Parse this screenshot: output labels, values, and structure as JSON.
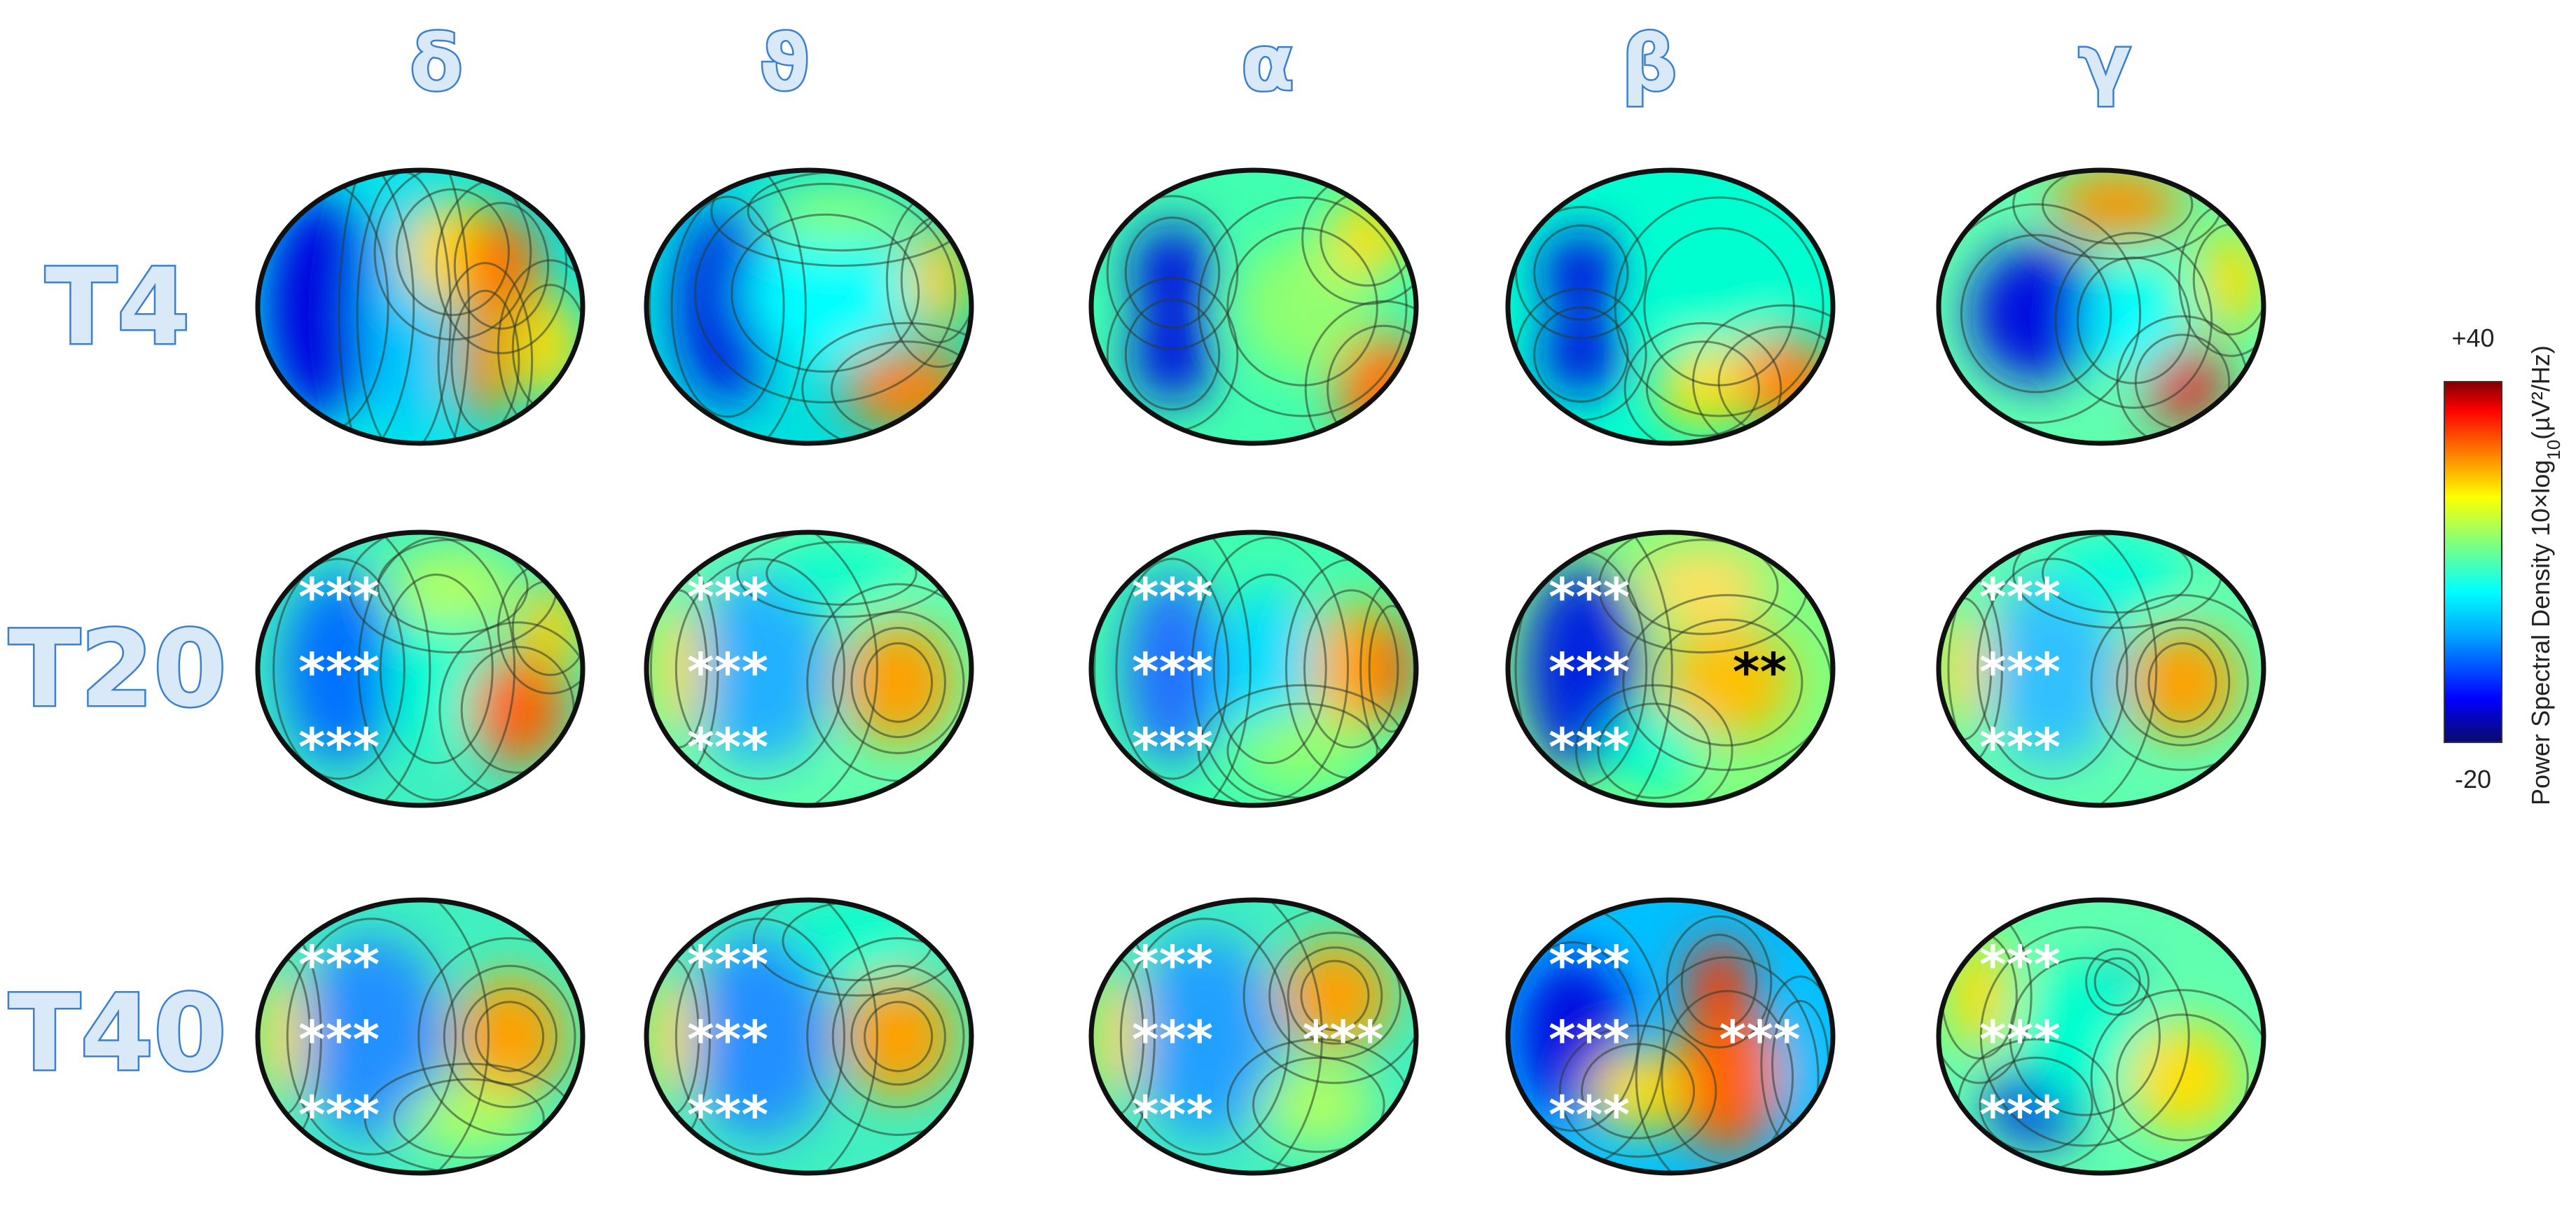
{
  "bands": [
    "δ",
    "ϑ",
    "α",
    "β",
    "γ"
  ],
  "timepoints": [
    "T4",
    "T20",
    "T40"
  ],
  "colorbar": {
    "max_label": "+40",
    "min_label": "-20",
    "axis_label_prefix": "Power Spectral Density 10×log",
    "axis_label_sub": "10",
    "axis_label_suffix": "(µV²/Hz)",
    "colors": [
      "#0a0a6a",
      "#0000ff",
      "#00a8ff",
      "#00ffff",
      "#7fff7f",
      "#ffff00",
      "#ff8000",
      "#ff0000",
      "#800000"
    ]
  },
  "significance": {
    "triple": "***",
    "double": "**",
    "markers": [
      {
        "row": 1,
        "col": 0,
        "text": "***"
      },
      {
        "row": 1,
        "col": 1,
        "text": "***"
      },
      {
        "row": 1,
        "col": 2,
        "text": "***"
      },
      {
        "row": 1,
        "col": 3,
        "text": "***"
      },
      {
        "row": 1,
        "col": 3,
        "text": "**",
        "color": "black",
        "side": "right"
      },
      {
        "row": 1,
        "col": 4,
        "text": "***"
      },
      {
        "row": 2,
        "col": 0,
        "text": "***"
      },
      {
        "row": 2,
        "col": 1,
        "text": "***"
      },
      {
        "row": 2,
        "col": 2,
        "text": "***"
      },
      {
        "row": 2,
        "col": 2,
        "text": "***",
        "color": "white",
        "side": "right"
      },
      {
        "row": 2,
        "col": 3,
        "text": "***"
      },
      {
        "row": 2,
        "col": 3,
        "text": "***",
        "color": "white",
        "side": "right"
      },
      {
        "row": 2,
        "col": 4,
        "text": "***"
      }
    ]
  }
}
